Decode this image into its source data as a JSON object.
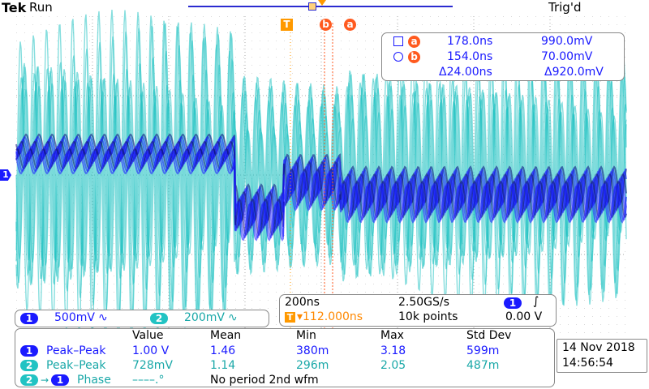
{
  "header": {
    "brand": "Tek",
    "run_state": "Run",
    "trigger_status": "Trig'd"
  },
  "markers": {
    "trigger": "T",
    "cursor_a": "a",
    "cursor_b": "b"
  },
  "cursor_readout": {
    "row_a": {
      "time": "178.0ns",
      "voltage": "990.0mV",
      "label": "a"
    },
    "row_b": {
      "time": "154.0ns",
      "voltage": "70.00mV",
      "label": "b"
    },
    "delta_time": "Δ24.00ns",
    "delta_voltage": "Δ920.0mV"
  },
  "channel_marker": "1",
  "channels": {
    "ch1": {
      "number": "1",
      "scale": "500mV",
      "coupling_symbol": "∿",
      "color": "#1a1aff"
    },
    "ch2": {
      "number": "2",
      "scale": "200mV",
      "coupling_symbol": "∿",
      "color": "#22c3c3"
    }
  },
  "timebase": {
    "scale": "200ns",
    "sample_rate": "2.50GS/s",
    "trigger_position": "▾112.000ns",
    "record_length": "10k points",
    "trigger_channel": "1",
    "trigger_slope": "∫",
    "trigger_level": "0.00 V"
  },
  "measurements": {
    "columns": [
      "Value",
      "Mean",
      "Min",
      "Max",
      "Std Dev"
    ],
    "rows": [
      {
        "channel": "1",
        "name": "Peak–Peak",
        "value": "1.00 V",
        "mean": "1.46",
        "min": "380m",
        "max": "3.18",
        "std": "599m"
      },
      {
        "channel": "2",
        "name": "Peak–Peak",
        "value": "728mV",
        "mean": "1.14",
        "min": "296m",
        "max": "2.05",
        "std": "487m"
      }
    ],
    "phase": {
      "from_channel": "2",
      "arrow": "→",
      "to_channel": "1",
      "name": "Phase",
      "value": "––––.°",
      "note": "No period 2nd wfm"
    }
  },
  "datetime": {
    "date": "14 Nov 2018",
    "time": "14:56:54"
  }
}
